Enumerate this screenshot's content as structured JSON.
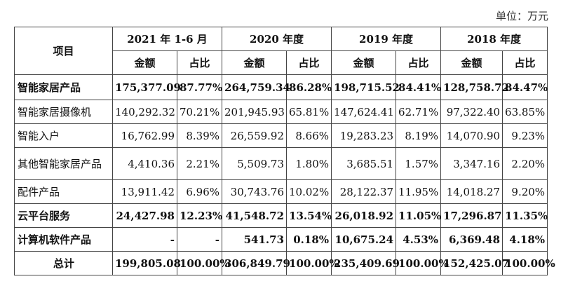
{
  "unit_label": "单位：万元",
  "table": {
    "item_header": "项目",
    "periods": [
      "2021 年 1-6 月",
      "2020 年度",
      "2019 年度",
      "2018 年度"
    ],
    "sub_headers": [
      "金额",
      "占比"
    ],
    "rows": [
      {
        "label": "智能家居产品",
        "bold": true,
        "values": [
          "175,377.09",
          "87.77%",
          "264,759.34",
          "86.28%",
          "198,715.52",
          "84.41%",
          "128,758.72",
          "84.47%"
        ]
      },
      {
        "label": "智能家居摄像机",
        "bold": false,
        "values": [
          "140,292.32",
          "70.21%",
          "201,945.93",
          "65.81%",
          "147,624.41",
          "62.71%",
          "97,322.40",
          "63.85%"
        ]
      },
      {
        "label": "智能入户",
        "bold": false,
        "values": [
          "16,762.99",
          "8.39%",
          "26,559.92",
          "8.66%",
          "19,283.23",
          "8.19%",
          "14,070.90",
          "9.23%"
        ]
      },
      {
        "label": "其他智能家居产品",
        "bold": false,
        "values": [
          "4,410.36",
          "2.21%",
          "5,509.73",
          "1.80%",
          "3,685.51",
          "1.57%",
          "3,347.16",
          "2.20%"
        ]
      },
      {
        "label": "配件产品",
        "bold": false,
        "values": [
          "13,911.42",
          "6.96%",
          "30,743.76",
          "10.02%",
          "28,122.37",
          "11.95%",
          "14,018.27",
          "9.20%"
        ]
      },
      {
        "label": "云平台服务",
        "bold": true,
        "values": [
          "24,427.98",
          "12.23%",
          "41,548.72",
          "13.54%",
          "26,018.92",
          "11.05%",
          "17,296.87",
          "11.35%"
        ]
      },
      {
        "label": "计算机软件产品",
        "bold": true,
        "values": [
          "-",
          "-",
          "541.73",
          "0.18%",
          "10,675.24",
          "4.53%",
          "6,369.48",
          "4.18%"
        ]
      },
      {
        "label": "总计",
        "bold": true,
        "center": true,
        "values": [
          "199,805.08",
          "100.00%",
          "306,849.79",
          "100.00%",
          "235,409.69",
          "100.00%",
          "152,425.07",
          "100.00%"
        ]
      }
    ]
  }
}
